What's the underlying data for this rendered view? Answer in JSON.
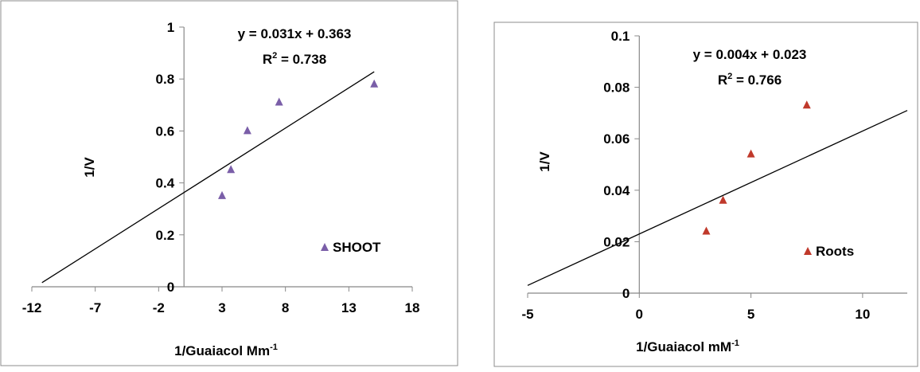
{
  "chart_data": [
    {
      "type": "scatter",
      "xlabel": "1/Guaiacol Mm",
      "xlabel_sup": "-1",
      "ylabel": "1/V",
      "xlim": [
        -12,
        18
      ],
      "ylim": [
        0,
        1
      ],
      "x_ticks": [
        -12,
        -7,
        -2,
        3,
        8,
        13,
        18
      ],
      "y_ticks": [
        0,
        0.2,
        0.4,
        0.6,
        0.8,
        1
      ],
      "x_tick_labels": [
        "-12",
        "-7",
        "-2",
        "3",
        "8",
        "13",
        "18"
      ],
      "y_tick_labels": [
        "0",
        "0.2",
        "0.4",
        "0.6",
        "0.8",
        "1"
      ],
      "grid": false,
      "legend_position": "bottom-right",
      "marker_color": "#7a5ea8",
      "series": [
        {
          "name": "SHOOT",
          "x": [
            3,
            3.7,
            5,
            7.5,
            15
          ],
          "y": [
            0.35,
            0.45,
            0.6,
            0.71,
            0.78
          ]
        }
      ],
      "trendline": {
        "slope": 0.031,
        "intercept": 0.363,
        "x_range": [
          -11.2,
          15
        ],
        "equation": "y = 0.031x + 0.363",
        "r2_label": "R",
        "r2_sup": "2",
        "r2_value": " = 0.738"
      }
    },
    {
      "type": "scatter",
      "xlabel": "1/Guaiacol mM",
      "xlabel_sup": "-1",
      "ylabel": "1/V",
      "xlim": [
        -5,
        12
      ],
      "ylim": [
        0,
        0.1
      ],
      "x_ticks": [
        -5,
        0,
        5,
        10
      ],
      "y_ticks": [
        0,
        0.02,
        0.04,
        0.06,
        0.08,
        0.1
      ],
      "x_tick_labels": [
        "-5",
        "0",
        "5",
        "10"
      ],
      "y_tick_labels": [
        "0",
        "0.02",
        "0.04",
        "0.06",
        "0.08",
        "0.1"
      ],
      "grid": false,
      "legend_position": "bottom-right",
      "marker_color": "#c0392b",
      "series": [
        {
          "name": "Roots",
          "x": [
            3,
            3.75,
            5,
            7.5
          ],
          "y": [
            0.024,
            0.036,
            0.054,
            0.073
          ]
        }
      ],
      "trendline": {
        "slope": 0.004,
        "intercept": 0.023,
        "x_range": [
          -5,
          12
        ],
        "equation": "y = 0.004x + 0.023",
        "r2_label": "R",
        "r2_sup": "2",
        "r2_value": " = 0.766"
      }
    }
  ]
}
